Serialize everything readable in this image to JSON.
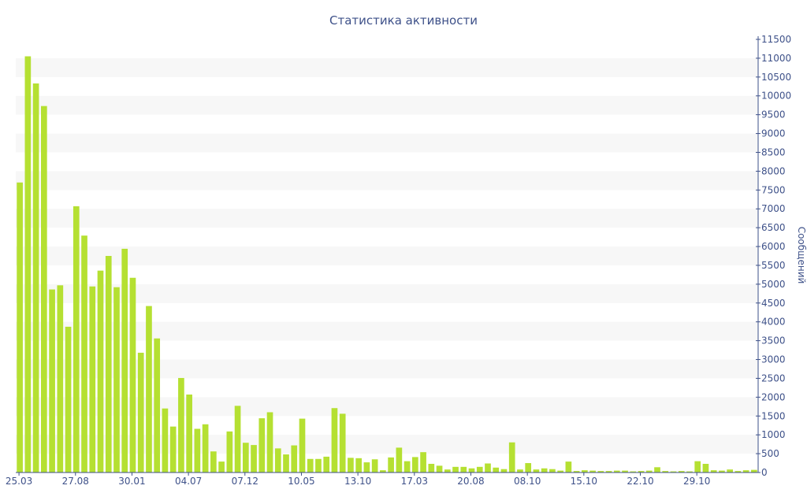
{
  "chart_data": {
    "type": "bar",
    "title": "Статистика активности",
    "ylabel": "Сообщений",
    "xlabel": "",
    "ylim": [
      0,
      11500
    ],
    "yticks": [
      0,
      500,
      1000,
      1500,
      2000,
      2500,
      3000,
      3500,
      4000,
      4500,
      5000,
      5500,
      6000,
      6500,
      7000,
      7500,
      8000,
      8500,
      9000,
      9500,
      10000,
      10500,
      11000,
      11500
    ],
    "xtick_labels": [
      "25.03",
      "27.08",
      "30.01",
      "04.07",
      "07.12",
      "10.05",
      "13.10",
      "17.03",
      "20.08",
      "08.10",
      "15.10",
      "22.10",
      "29.10"
    ],
    "xtick_indices": [
      0,
      7,
      14,
      21,
      28,
      35,
      42,
      49,
      56,
      63,
      70,
      77,
      84
    ],
    "y_axis_side": "right",
    "grid": "alternating horizontal bands",
    "colors": {
      "bar": "#b5e032",
      "text": "#3e5189",
      "band": "#f7f7f7"
    },
    "values": [
      7700,
      11050,
      10330,
      9730,
      4860,
      4970,
      3870,
      7070,
      6290,
      4940,
      5360,
      5750,
      4920,
      5940,
      5170,
      3180,
      4420,
      3560,
      1700,
      1220,
      2510,
      2070,
      1160,
      1280,
      560,
      290,
      1090,
      1770,
      790,
      730,
      1440,
      1600,
      640,
      480,
      720,
      1430,
      360,
      360,
      420,
      1710,
      1560,
      390,
      380,
      270,
      350,
      60,
      400,
      660,
      300,
      410,
      540,
      230,
      180,
      80,
      150,
      150,
      110,
      150,
      240,
      130,
      90,
      800,
      80,
      250,
      80,
      110,
      90,
      50,
      290,
      40,
      60,
      50,
      40,
      40,
      50,
      50,
      30,
      40,
      50,
      140,
      40,
      30,
      40,
      30,
      300,
      230,
      60,
      50,
      80,
      40,
      60,
      70
    ]
  }
}
